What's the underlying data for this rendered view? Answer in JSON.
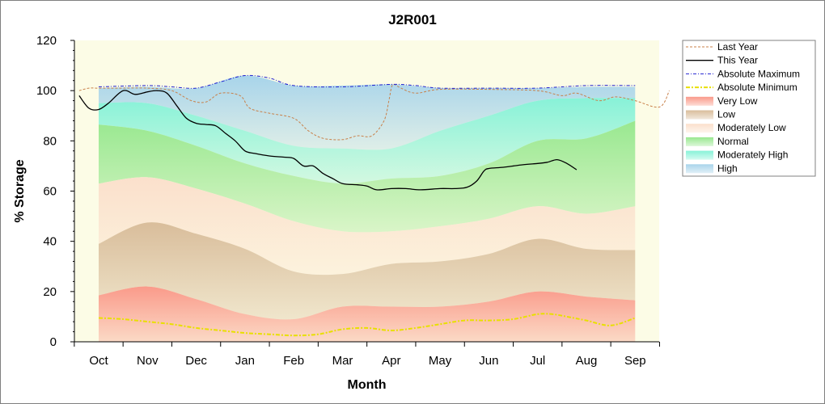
{
  "chart_data": {
    "type": "area",
    "title": "J2R001",
    "xlabel": "Month",
    "ylabel": "% Storage",
    "ylim": [
      0,
      120
    ],
    "yticks": [
      0,
      20,
      40,
      60,
      80,
      100,
      120
    ],
    "categories": [
      "Oct",
      "Nov",
      "Dec",
      "Jan",
      "Feb",
      "Mar",
      "Apr",
      "May",
      "Jun",
      "Jul",
      "Aug",
      "Sep"
    ],
    "legend_position": "right",
    "grid": false,
    "colors": {
      "plot_background": "#fcfce6",
      "last_year": "#c8804a",
      "this_year": "#000000",
      "absolute_maximum": "#2020d0",
      "absolute_minimum": "#e8e000",
      "very_low": "#fa9a8a",
      "low": "#d9bd9b",
      "moderately_low": "#fbe0cc",
      "normal": "#99e890",
      "moderately_high": "#88f2d8",
      "high": "#a8d4ea"
    },
    "bands": [
      {
        "name": "Very Low",
        "key": "very_low",
        "values": [
          18.5,
          22,
          17,
          11,
          9,
          14,
          14,
          14,
          16,
          20,
          18,
          16.5
        ]
      },
      {
        "name": "Low",
        "key": "low",
        "values": [
          39,
          47.5,
          43,
          37,
          28,
          27,
          31,
          32,
          35,
          41,
          37,
          36.5
        ]
      },
      {
        "name": "Moderately Low",
        "key": "moderately_low",
        "values": [
          63,
          65.5,
          61,
          55,
          48,
          44,
          44,
          46,
          49,
          54,
          51,
          54
        ]
      },
      {
        "name": "Normal",
        "key": "normal",
        "values": [
          86.5,
          84,
          78,
          71,
          66,
          63,
          65,
          66,
          71,
          80,
          81,
          88
        ]
      },
      {
        "name": "Moderately High",
        "key": "moderately_high",
        "values": [
          95,
          95,
          90,
          84,
          78,
          77,
          77,
          84,
          90,
          96,
          97,
          97
        ]
      },
      {
        "name": "High",
        "key": "high",
        "values": [
          101,
          101.5,
          101,
          106,
          102,
          102,
          102.5,
          101,
          101,
          101,
          101.5,
          101.5
        ]
      }
    ],
    "series": [
      {
        "name": "Last Year",
        "key": "last_year",
        "style": "dashed",
        "x": [
          -0.4,
          -0.2,
          0,
          0.4,
          1,
          1.5,
          1.9,
          2.2,
          2.5,
          2.9,
          3.1,
          3.5,
          4,
          4.3,
          4.6,
          5,
          5.3,
          5.6,
          5.85,
          5.95,
          6,
          6.05,
          6.2,
          6.5,
          7,
          8,
          9,
          9.5,
          9.8,
          10.25,
          10.6,
          11,
          11.5,
          11.7
        ],
        "y": [
          100,
          101,
          101,
          101,
          101,
          100,
          96,
          95.5,
          99,
          98,
          93,
          91,
          89,
          84,
          81,
          80.5,
          82,
          82,
          88,
          96,
          101,
          102.5,
          101,
          99,
          100.5,
          100.5,
          100,
          98,
          99,
          96,
          97.5,
          96,
          93.5,
          100
        ]
      },
      {
        "name": "This Year",
        "key": "this_year",
        "style": "solid",
        "x": [
          -0.4,
          -0.2,
          0,
          0.2,
          0.5,
          0.75,
          1,
          1.2,
          1.4,
          1.6,
          1.8,
          2,
          2.2,
          2.4,
          2.6,
          2.8,
          3,
          3.2,
          3.5,
          3.8,
          4,
          4.2,
          4.4,
          4.6,
          4.8,
          5,
          5.3,
          5.5,
          5.7,
          6,
          6.3,
          6.6,
          7,
          7.3,
          7.55,
          7.75,
          7.9,
          8,
          8.3,
          8.7,
          9,
          9.2,
          9.4,
          9.6,
          9.8
        ],
        "y": [
          98,
          93,
          92.5,
          95,
          100,
          98.5,
          99.5,
          100,
          99,
          94,
          89,
          87,
          86.5,
          86,
          83,
          80,
          76,
          75,
          74,
          73.5,
          73,
          70,
          70,
          67,
          65,
          63,
          62.5,
          62,
          60.5,
          61,
          61,
          60.5,
          61,
          61,
          61.5,
          64,
          68,
          69,
          69.5,
          70.5,
          71,
          71.5,
          72.5,
          71,
          68.5
        ]
      },
      {
        "name": "Absolute Maximum",
        "key": "absolute_maximum",
        "style": "dashdot",
        "x": [
          0,
          1,
          1.5,
          2,
          2.5,
          3,
          3.5,
          4,
          5,
          6,
          6.5,
          7,
          8,
          9,
          10,
          11
        ],
        "y": [
          101.5,
          102,
          101.5,
          101,
          103.5,
          106,
          105,
          102,
          101.5,
          102.5,
          102,
          101,
          101,
          101,
          102,
          102
        ]
      },
      {
        "name": "Absolute Minimum",
        "key": "absolute_minimum",
        "style": "dashdot-thick",
        "x": [
          0,
          0.5,
          1,
          1.5,
          2,
          2.5,
          3,
          3.5,
          4,
          4.5,
          5,
          5.5,
          6,
          6.5,
          7,
          7.5,
          8,
          8.5,
          9,
          9.3,
          9.6,
          10,
          10.5,
          11
        ],
        "y": [
          9.5,
          9,
          8,
          7,
          5.5,
          4.5,
          3.5,
          3,
          2.5,
          3,
          5,
          5.5,
          4.5,
          5.5,
          7,
          8.5,
          8.5,
          9,
          11,
          11,
          10,
          8.5,
          6.5,
          9.5
        ]
      }
    ],
    "legend": [
      "Last Year",
      "This Year",
      "Absolute Maximum",
      "Absolute Minimum",
      "Very Low",
      "Low",
      "Moderately Low",
      "Normal",
      "Moderately High",
      "High"
    ]
  }
}
